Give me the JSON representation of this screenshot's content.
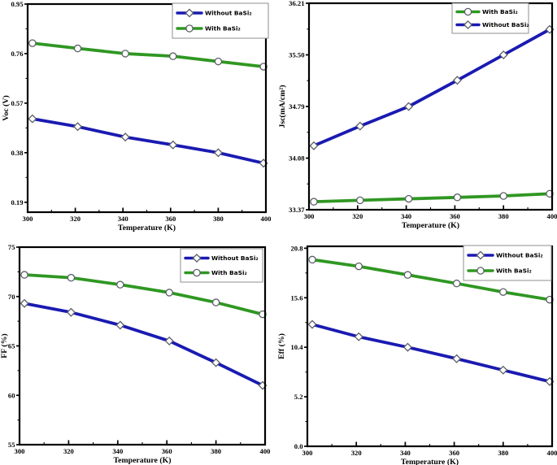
{
  "colors": {
    "without_basi2": "#1a1ab2",
    "with_basi2": "#2f9722",
    "marker_fill": "#ffffff",
    "marker_stroke": "#5a5f66",
    "axis": "#000000",
    "legend_border": "#8f8f8f",
    "background": "#ffffff"
  },
  "chart_data": [
    {
      "id": "voc",
      "type": "line",
      "xlabel": "Temperature (K)",
      "ylabel": "Voc (V)",
      "x": [
        302,
        321,
        341,
        361,
        380,
        399
      ],
      "xlim": [
        300,
        400
      ],
      "ylim": [
        0.152,
        0.95
      ],
      "xticks": [
        300,
        320,
        340,
        360,
        380,
        400
      ],
      "xtick_labels": [
        "300",
        "320",
        "340",
        "360",
        "380",
        "400"
      ],
      "yticks": [
        0.19,
        0.38,
        0.57,
        0.76,
        0.95
      ],
      "ytick_labels": [
        "0.19",
        "0.38",
        "0.57",
        "0.76",
        "0.95"
      ],
      "grid": false,
      "legend_position": "top-right",
      "series": [
        {
          "name": "Without BaSi₂",
          "marker": "diamond",
          "color_key": "without_basi2",
          "values": [
            0.51,
            0.48,
            0.44,
            0.41,
            0.38,
            0.34
          ]
        },
        {
          "name": "With BaSi₂",
          "marker": "circle",
          "color_key": "with_basi2",
          "values": [
            0.8,
            0.78,
            0.76,
            0.75,
            0.73,
            0.71
          ]
        }
      ]
    },
    {
      "id": "jsc",
      "type": "line",
      "xlabel": "Temperature (K)",
      "ylabel": "Jsc(mA/cm²)",
      "x": [
        302,
        321,
        341,
        361,
        380,
        399
      ],
      "xlim": [
        300,
        400
      ],
      "ylim": [
        33.37,
        36.21
      ],
      "xticks": [
        300,
        320,
        340,
        360,
        380,
        400
      ],
      "xtick_labels": [
        "300",
        "320",
        "340",
        "360",
        "380",
        "400"
      ],
      "yticks": [
        33.37,
        34.08,
        34.79,
        35.5,
        36.21
      ],
      "ytick_labels": [
        "33.37",
        "34.08",
        "34.79",
        "35.50",
        "36.21"
      ],
      "grid": false,
      "legend_position": "top-right",
      "series": [
        {
          "name": "With BaSi₂",
          "marker": "circle",
          "color_key": "with_basi2",
          "values": [
            33.48,
            33.5,
            33.52,
            33.54,
            33.56,
            33.59
          ]
        },
        {
          "name": "Without BaSi₂",
          "marker": "diamond",
          "color_key": "without_basi2",
          "values": [
            34.25,
            34.52,
            34.79,
            35.15,
            35.5,
            35.85
          ]
        }
      ]
    },
    {
      "id": "ff",
      "type": "line",
      "xlabel": "Temperature (K)",
      "ylabel": "FF (%)",
      "x": [
        302,
        321,
        341,
        361,
        380,
        399
      ],
      "xlim": [
        300,
        400
      ],
      "ylim": [
        55,
        75
      ],
      "xticks": [
        300,
        320,
        340,
        360,
        380,
        400
      ],
      "xtick_labels": [
        "300",
        "320",
        "340",
        "360",
        "380",
        "400"
      ],
      "yticks": [
        55,
        60,
        65,
        70,
        75
      ],
      "ytick_labels": [
        "55",
        "60",
        "65",
        "70",
        "75"
      ],
      "grid": false,
      "legend_position": "top-right",
      "series": [
        {
          "name": "Without BaSi₂",
          "marker": "diamond",
          "color_key": "without_basi2",
          "values": [
            69.3,
            68.4,
            67.1,
            65.5,
            63.3,
            61.0
          ]
        },
        {
          "name": "With BaSi₂",
          "marker": "circle",
          "color_key": "with_basi2",
          "values": [
            72.2,
            71.9,
            71.2,
            70.4,
            69.4,
            68.2
          ]
        }
      ]
    },
    {
      "id": "eff",
      "type": "line",
      "xlabel": "Temperature (K)",
      "ylabel": "Eff (%)",
      "x": [
        302,
        321,
        341,
        361,
        380,
        399
      ],
      "xlim": [
        300,
        400
      ],
      "ylim": [
        0,
        21
      ],
      "xticks": [
        300,
        320,
        340,
        360,
        380,
        400
      ],
      "xtick_labels": [
        "300",
        "320",
        "340",
        "360",
        "380",
        "400"
      ],
      "yticks": [
        0.0,
        5.2,
        10.4,
        15.6,
        20.8
      ],
      "ytick_labels": [
        "0.0",
        "5.2",
        "10.4",
        "15.6",
        "20.8"
      ],
      "grid": false,
      "legend_position": "top-right",
      "series": [
        {
          "name": "Without BaSi₂",
          "marker": "diamond",
          "color_key": "without_basi2",
          "values": [
            12.8,
            11.5,
            10.4,
            9.2,
            8.0,
            6.8
          ]
        },
        {
          "name": "With BaSi₂",
          "marker": "circle",
          "color_key": "with_basi2",
          "values": [
            19.6,
            18.9,
            18.0,
            17.1,
            16.2,
            15.4
          ]
        }
      ]
    }
  ]
}
